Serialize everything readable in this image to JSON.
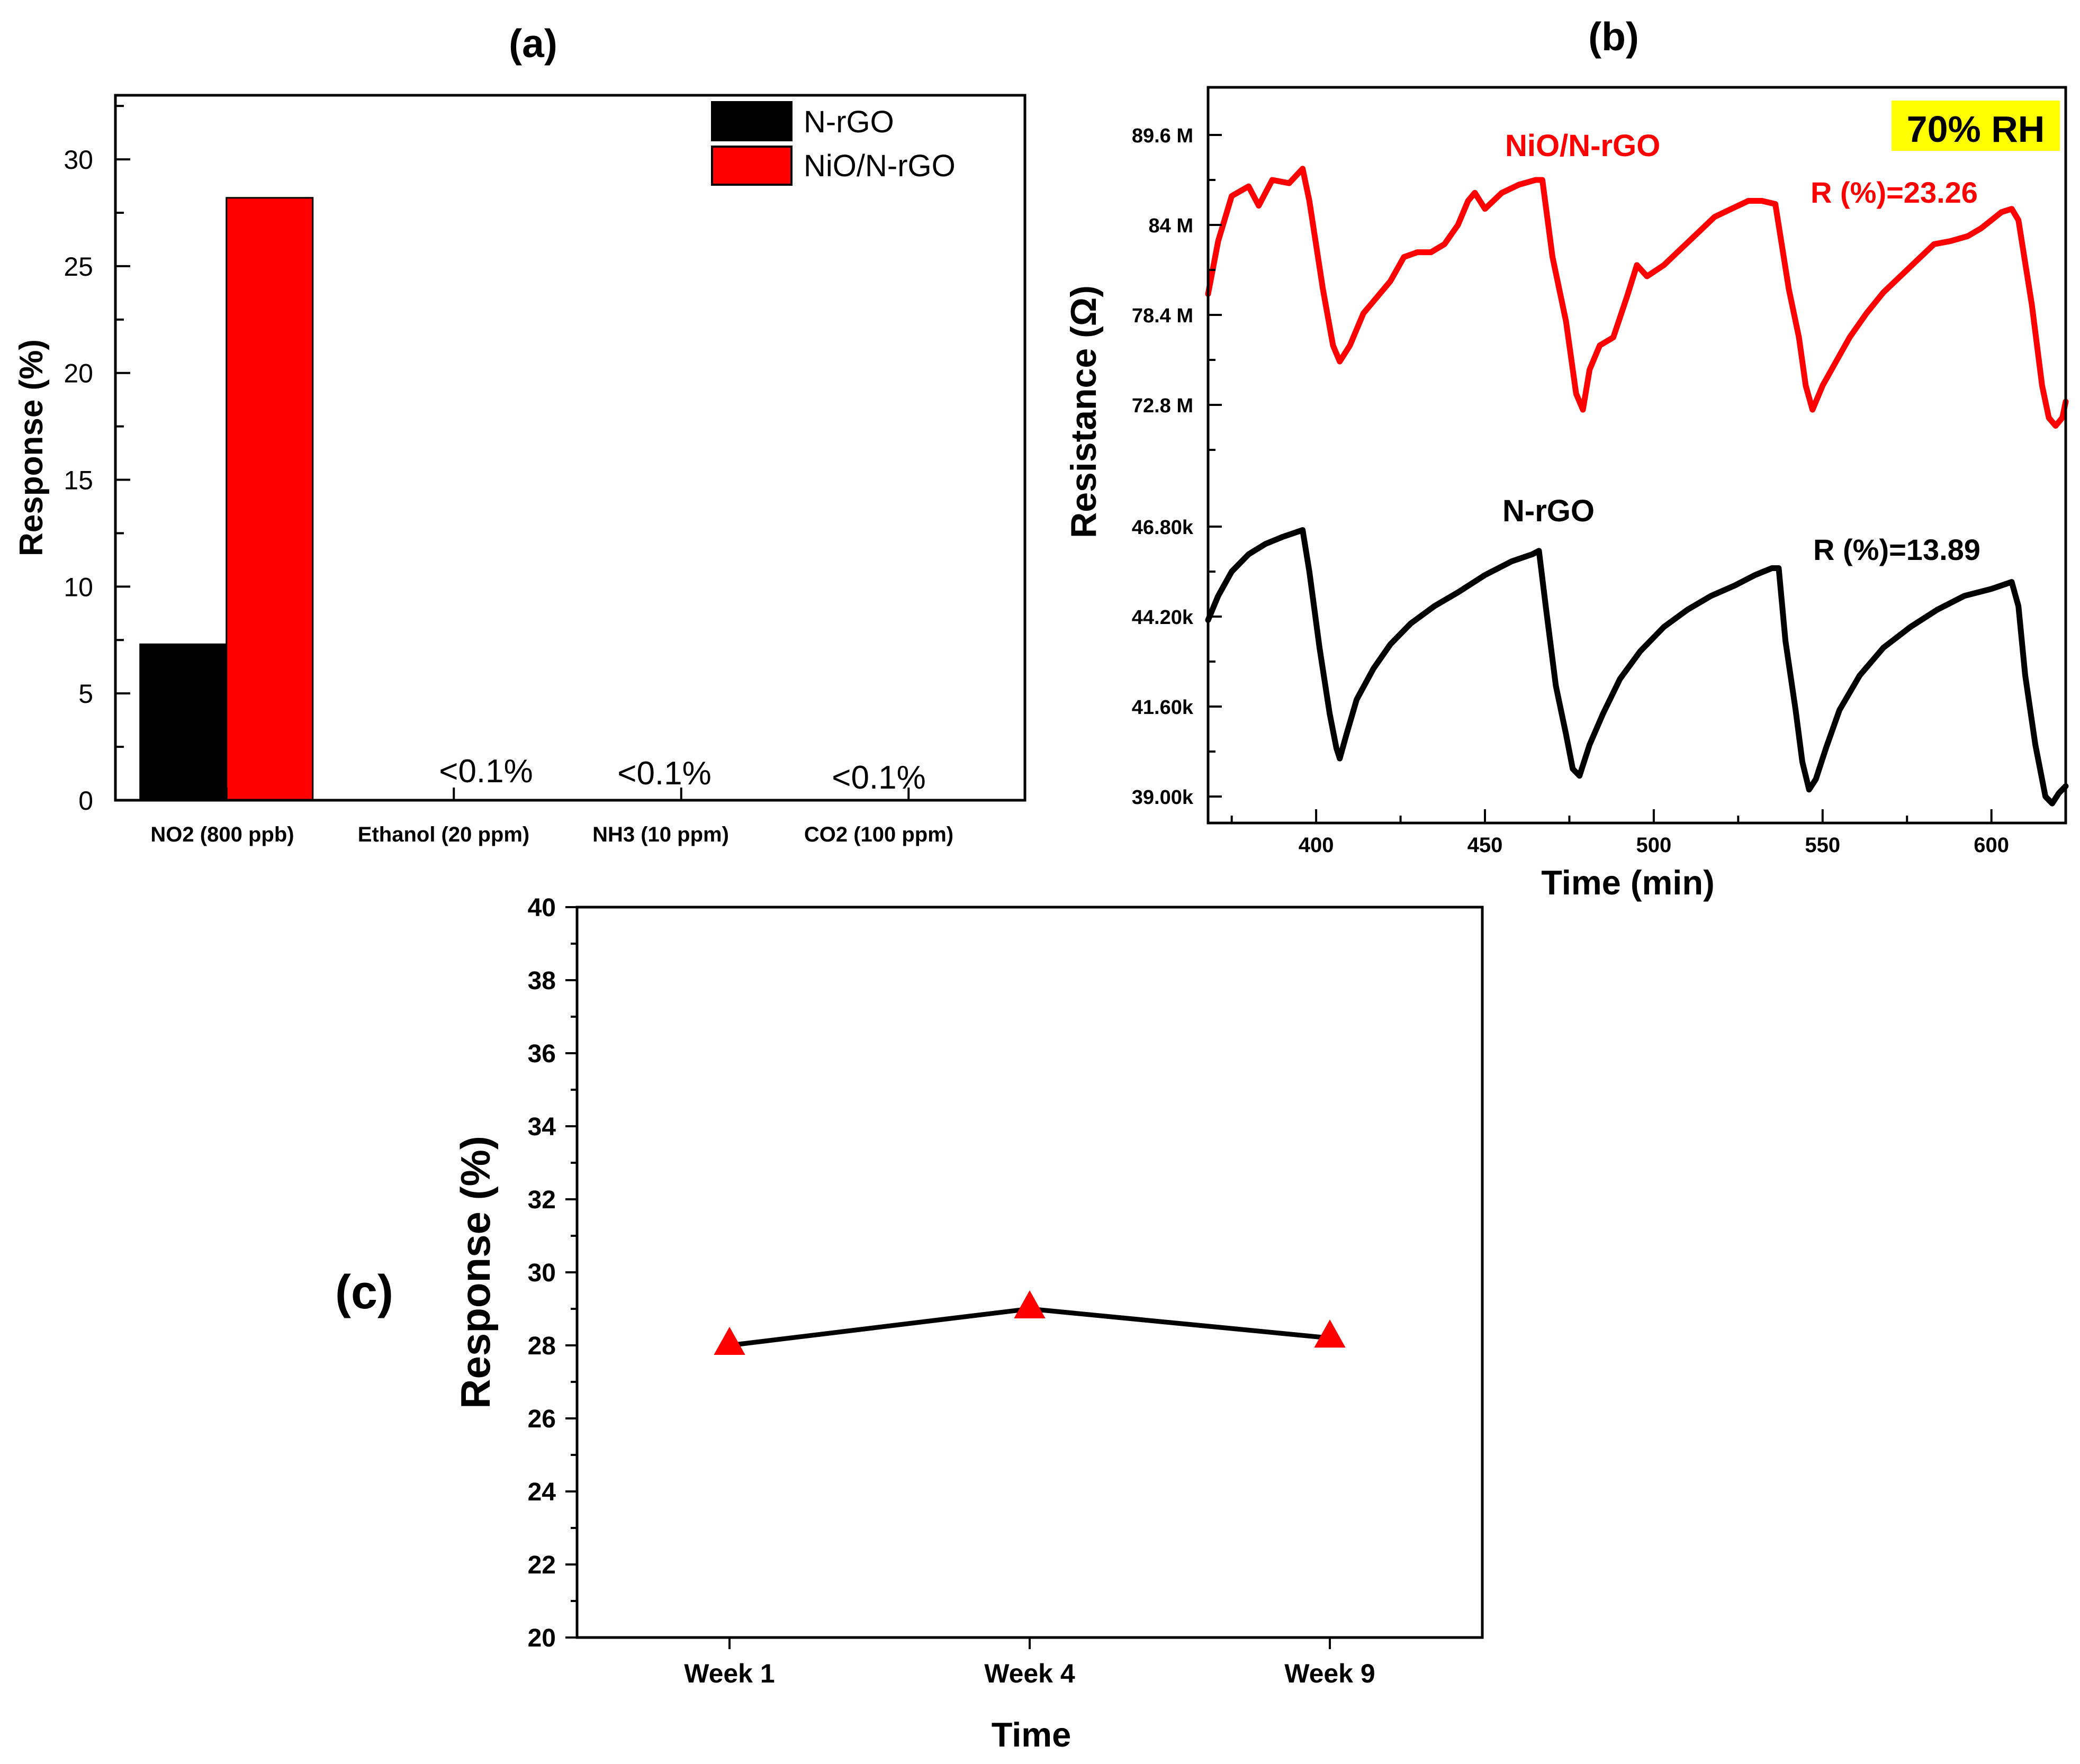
{
  "colors": {
    "n_rgo": "#000000",
    "nio": "#ff0000",
    "highlight": "#ffff00"
  },
  "chart_data": [
    {
      "panel": "(a)",
      "type": "bar",
      "ylabel": "Response (%)",
      "ylim": [
        0,
        33
      ],
      "yticks": [
        "0",
        "5",
        "10",
        "15",
        "20",
        "25",
        "30"
      ],
      "categories": [
        "NO2 (800 ppb)",
        "Ethanol (20 ppm)",
        "NH3 (10 ppm)",
        "CO2 (100 ppm)"
      ],
      "series": [
        {
          "name": "N-rGO",
          "values": [
            7.3,
            0,
            0,
            0
          ]
        },
        {
          "name": "NiO/N-rGO",
          "values": [
            28.2,
            0,
            0,
            0
          ]
        }
      ],
      "annotations": [
        "<0.1%",
        "<0.1%",
        "<0.1%"
      ],
      "legend": "top-right"
    },
    {
      "panel": "(b)",
      "type": "line",
      "xlabel": "Time (min)",
      "ylabel": "Resistance (Ω)",
      "xlim": [
        368,
        622
      ],
      "xticks": [
        "400",
        "450",
        "500",
        "550",
        "600"
      ],
      "top_yticks": [
        "89.6 M",
        "84 M",
        "78.4 M",
        "72.8 M"
      ],
      "bottom_yticks": [
        "46.80k",
        "44.20k",
        "41.60k",
        "39.00k"
      ],
      "condition_label": "70% RH",
      "series": [
        {
          "name": "NiO/N-rGO",
          "response_label": "R (%)=23.26",
          "unit": "MΩ",
          "points": [
            [
              368,
              79.7
            ],
            [
              371,
              83.0
            ],
            [
              375,
              85.8
            ],
            [
              380,
              86.4
            ],
            [
              383,
              85.2
            ],
            [
              387,
              86.8
            ],
            [
              392,
              86.6
            ],
            [
              396,
              87.5
            ],
            [
              398,
              85.5
            ],
            [
              402,
              80.0
            ],
            [
              405,
              76.5
            ],
            [
              407,
              75.5
            ],
            [
              410,
              76.5
            ],
            [
              414,
              78.5
            ],
            [
              418,
              79.5
            ],
            [
              422,
              80.5
            ],
            [
              426,
              82.0
            ],
            [
              430,
              82.3
            ],
            [
              434,
              82.3
            ],
            [
              438,
              82.8
            ],
            [
              442,
              84.0
            ],
            [
              445,
              85.5
            ],
            [
              447,
              86.0
            ],
            [
              450,
              85.0
            ],
            [
              455,
              86.0
            ],
            [
              460,
              86.5
            ],
            [
              465,
              86.8
            ],
            [
              467,
              86.8
            ],
            [
              470,
              82.0
            ],
            [
              474,
              78.0
            ],
            [
              477,
              73.5
            ],
            [
              479,
              72.5
            ],
            [
              481,
              75.0
            ],
            [
              484,
              76.5
            ],
            [
              488,
              77.0
            ],
            [
              492,
              79.5
            ],
            [
              495,
              81.5
            ],
            [
              498,
              80.8
            ],
            [
              503,
              81.5
            ],
            [
              508,
              82.5
            ],
            [
              513,
              83.5
            ],
            [
              518,
              84.5
            ],
            [
              523,
              85.0
            ],
            [
              528,
              85.5
            ],
            [
              532,
              85.5
            ],
            [
              536,
              85.3
            ],
            [
              540,
              80.0
            ],
            [
              543,
              77.0
            ],
            [
              545,
              74.0
            ],
            [
              547,
              72.5
            ],
            [
              550,
              74.0
            ],
            [
              554,
              75.5
            ],
            [
              558,
              77.0
            ],
            [
              563,
              78.5
            ],
            [
              568,
              79.8
            ],
            [
              573,
              80.8
            ],
            [
              578,
              81.8
            ],
            [
              583,
              82.8
            ],
            [
              588,
              83.0
            ],
            [
              593,
              83.3
            ],
            [
              597,
              83.8
            ],
            [
              600,
              84.3
            ],
            [
              603,
              84.8
            ],
            [
              606,
              85.0
            ],
            [
              608,
              84.3
            ],
            [
              612,
              79.0
            ],
            [
              615,
              74.0
            ],
            [
              617,
              72.0
            ],
            [
              619,
              71.5
            ],
            [
              621,
              72.0
            ],
            [
              622,
              73.0
            ]
          ]
        },
        {
          "name": "N-rGO",
          "response_label": "R (%)=13.89",
          "unit": "kΩ",
          "points": [
            [
              368,
              44.1
            ],
            [
              371,
              44.8
            ],
            [
              375,
              45.5
            ],
            [
              380,
              46.0
            ],
            [
              385,
              46.3
            ],
            [
              390,
              46.5
            ],
            [
              393,
              46.6
            ],
            [
              396,
              46.7
            ],
            [
              398,
              45.5
            ],
            [
              401,
              43.3
            ],
            [
              404,
              41.4
            ],
            [
              406,
              40.4
            ],
            [
              407,
              40.1
            ],
            [
              409,
              40.8
            ],
            [
              412,
              41.8
            ],
            [
              417,
              42.7
            ],
            [
              422,
              43.4
            ],
            [
              428,
              44.0
            ],
            [
              435,
              44.5
            ],
            [
              442,
              44.9
            ],
            [
              450,
              45.4
            ],
            [
              458,
              45.8
            ],
            [
              464,
              46.0
            ],
            [
              466,
              46.1
            ],
            [
              468,
              44.5
            ],
            [
              471,
              42.2
            ],
            [
              474,
              40.8
            ],
            [
              476,
              39.8
            ],
            [
              478,
              39.6
            ],
            [
              481,
              40.5
            ],
            [
              485,
              41.4
            ],
            [
              490,
              42.4
            ],
            [
              496,
              43.2
            ],
            [
              503,
              43.9
            ],
            [
              510,
              44.4
            ],
            [
              517,
              44.8
            ],
            [
              524,
              45.1
            ],
            [
              530,
              45.4
            ],
            [
              535,
              45.6
            ],
            [
              537,
              45.6
            ],
            [
              539,
              43.5
            ],
            [
              542,
              41.5
            ],
            [
              544,
              40.0
            ],
            [
              546,
              39.2
            ],
            [
              548,
              39.5
            ],
            [
              551,
              40.4
            ],
            [
              555,
              41.5
            ],
            [
              561,
              42.5
            ],
            [
              568,
              43.3
            ],
            [
              576,
              43.9
            ],
            [
              584,
              44.4
            ],
            [
              592,
              44.8
            ],
            [
              600,
              45.0
            ],
            [
              606,
              45.2
            ],
            [
              608,
              44.5
            ],
            [
              610,
              42.5
            ],
            [
              613,
              40.5
            ],
            [
              616,
              39.0
            ],
            [
              618,
              38.8
            ],
            [
              620,
              39.1
            ],
            [
              622,
              39.3
            ]
          ]
        }
      ]
    },
    {
      "panel": "(c)",
      "type": "line",
      "xlabel": "Time",
      "ylabel": "Response (%)",
      "ylim": [
        20,
        40
      ],
      "yticks": [
        "20",
        "22",
        "24",
        "26",
        "28",
        "30",
        "32",
        "34",
        "36",
        "38",
        "40"
      ],
      "categories": [
        "Week 1",
        "Week 4",
        "Week 9"
      ],
      "values": [
        28.0,
        29.0,
        28.2
      ]
    }
  ]
}
